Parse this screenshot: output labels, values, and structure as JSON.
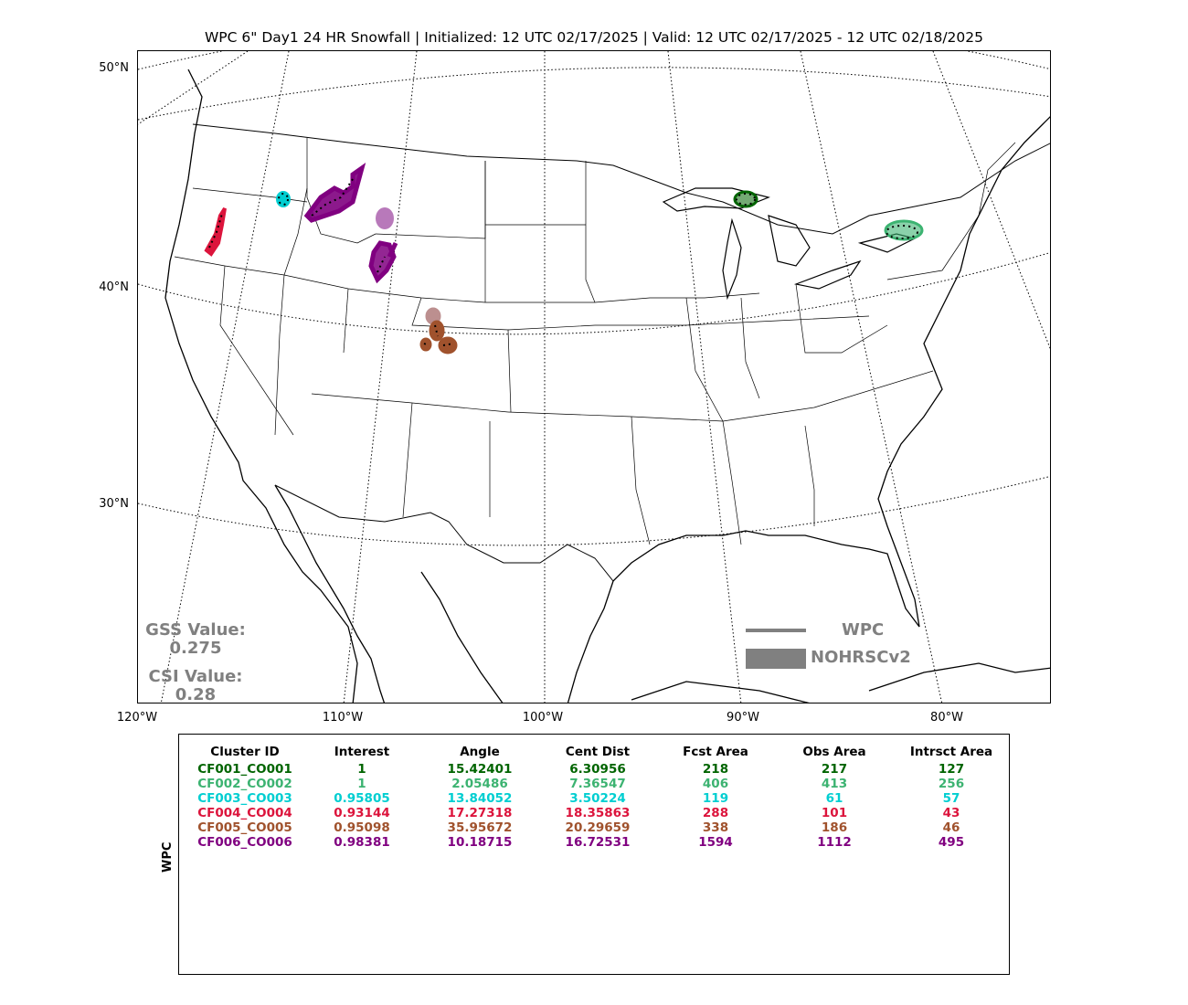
{
  "title": "WPC 6\" Day1 24 HR Snowfall | Initialized: 12 UTC 02/17/2025 | Valid: 12 UTC 02/17/2025 - 12 UTC 02/18/2025",
  "lat_labels": [
    "50°N",
    "40°N",
    "30°N"
  ],
  "lon_labels": [
    "120°W",
    "110°W",
    "100°W",
    "90°W",
    "80°W"
  ],
  "scores": {
    "gss_label": "GSS Value:",
    "gss_value": "0.275",
    "csi_label": "CSI Value:",
    "csi_value": "0.28"
  },
  "legend": {
    "line_label": "WPC",
    "fill_label": "NOHRSCv2",
    "color": "#808080"
  },
  "table": {
    "side_label": "WPC",
    "headers": [
      "Cluster ID",
      "Interest",
      "Angle",
      "Cent Dist",
      "Fcst Area",
      "Obs Area",
      "Intrsct Area"
    ],
    "rows": [
      {
        "color": "#006400",
        "cells": [
          "CF001_CO001",
          "1",
          "15.42401",
          "6.30956",
          "218",
          "217",
          "127"
        ]
      },
      {
        "color": "#3cb371",
        "cells": [
          "CF002_CO002",
          "1",
          "2.05486",
          "7.36547",
          "406",
          "413",
          "256"
        ]
      },
      {
        "color": "#00ced1",
        "cells": [
          "CF003_CO003",
          "0.95805",
          "13.84052",
          "3.50224",
          "119",
          "61",
          "57"
        ]
      },
      {
        "color": "#dc143c",
        "cells": [
          "CF004_CO004",
          "0.93144",
          "17.27318",
          "18.35863",
          "288",
          "101",
          "43"
        ]
      },
      {
        "color": "#a0522d",
        "cells": [
          "CF005_CO005",
          "0.95098",
          "35.95672",
          "20.29659",
          "338",
          "186",
          "46"
        ]
      },
      {
        "color": "#800080",
        "cells": [
          "CF006_CO006",
          "0.98381",
          "10.18715",
          "16.72531",
          "1594",
          "1112",
          "495"
        ]
      }
    ]
  }
}
